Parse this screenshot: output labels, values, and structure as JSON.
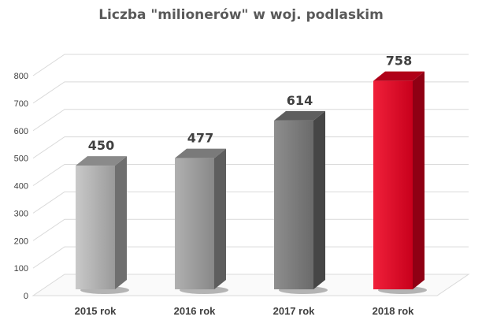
{
  "chart_data": {
    "type": "bar",
    "title": "Liczba \"milionerów\" w woj. podlaskim",
    "xlabel": "",
    "ylabel": "",
    "categories": [
      "2015 rok",
      "2016 rok",
      "2017 rok",
      "2018 rok"
    ],
    "values": [
      450,
      477,
      614,
      758
    ],
    "data_labels": [
      "450",
      "477",
      "614",
      "758"
    ],
    "ylim": [
      0,
      800
    ],
    "yticks": [
      0,
      100,
      200,
      300,
      400,
      500,
      600,
      700,
      800
    ],
    "ytick_labels": [
      "0",
      "100",
      "200",
      "300",
      "400",
      "500",
      "600",
      "700",
      "800"
    ],
    "grid": true,
    "legend": "none",
    "style": "3d-column",
    "bar_colors": [
      {
        "front_light": "#c9c9c9",
        "front_dark": "#9a9a9a",
        "side": "#6f6f6f",
        "top": "#8a8a8a"
      },
      {
        "front_light": "#b0b0b0",
        "front_dark": "#888888",
        "side": "#5e5e5e",
        "top": "#7a7a7a"
      },
      {
        "front_light": "#8e8e8e",
        "front_dark": "#6a6a6a",
        "side": "#464646",
        "top": "#5e5e5e"
      },
      {
        "front_light": "#f0203a",
        "front_dark": "#c8001c",
        "side": "#8f0014",
        "top": "#b00018"
      }
    ],
    "grid_color": "#d9d9d9"
  }
}
